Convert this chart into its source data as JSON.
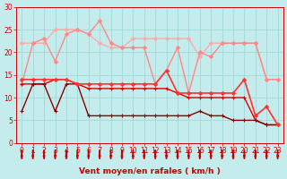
{
  "title": "",
  "xlabel": "Vent moyen/en rafales ( km/h )",
  "bg_color": "#c5ecec",
  "grid_color": "#a0d8d8",
  "xlim": [
    -0.5,
    23.5
  ],
  "ylim": [
    0,
    30
  ],
  "yticks": [
    0,
    5,
    10,
    15,
    20,
    25,
    30
  ],
  "xticks": [
    0,
    1,
    2,
    3,
    4,
    5,
    6,
    7,
    8,
    9,
    10,
    11,
    12,
    13,
    14,
    15,
    16,
    17,
    18,
    19,
    20,
    21,
    22,
    23
  ],
  "lines": [
    {
      "x": [
        0,
        1,
        2,
        3,
        4,
        5,
        6,
        7,
        8,
        9,
        10,
        11,
        12,
        13,
        14,
        15,
        16,
        17,
        18,
        19,
        20,
        21,
        22,
        23
      ],
      "y": [
        22,
        22,
        22,
        25,
        25,
        25,
        24,
        22,
        21,
        21,
        23,
        23,
        23,
        23,
        23,
        23,
        19,
        22,
        22,
        22,
        22,
        22,
        14,
        14
      ],
      "color": "#ffaaaa",
      "lw": 1.0,
      "marker": "D",
      "ms": 2.0
    },
    {
      "x": [
        0,
        1,
        2,
        3,
        4,
        5,
        6,
        7,
        8,
        9,
        10,
        11,
        12,
        13,
        14,
        15,
        16,
        17,
        18,
        19,
        20,
        21,
        22,
        23
      ],
      "y": [
        13,
        22,
        23,
        18,
        24,
        25,
        24,
        27,
        22,
        21,
        21,
        21,
        13,
        16,
        21,
        11,
        20,
        19,
        22,
        22,
        22,
        22,
        14,
        14
      ],
      "color": "#ff8888",
      "lw": 1.0,
      "marker": "D",
      "ms": 2.0
    },
    {
      "x": [
        0,
        1,
        2,
        3,
        4,
        5,
        6,
        7,
        8,
        9,
        10,
        11,
        12,
        13,
        14,
        15,
        16,
        17,
        18,
        19,
        20,
        21,
        22,
        23
      ],
      "y": [
        13,
        13,
        13,
        14,
        14,
        13,
        12,
        12,
        12,
        12,
        12,
        12,
        12,
        12,
        11,
        10,
        10,
        10,
        10,
        10,
        10,
        5,
        4,
        4
      ],
      "color": "#dd0000",
      "lw": 1.0,
      "marker": "+",
      "ms": 3.0
    },
    {
      "x": [
        0,
        1,
        2,
        3,
        4,
        5,
        6,
        7,
        8,
        9,
        10,
        11,
        12,
        13,
        14,
        15,
        16,
        17,
        18,
        19,
        20,
        21,
        22,
        23
      ],
      "y": [
        7,
        13,
        13,
        7,
        13,
        13,
        6,
        6,
        6,
        6,
        6,
        6,
        6,
        6,
        6,
        6,
        7,
        6,
        6,
        5,
        5,
        5,
        4,
        4
      ],
      "color": "#880000",
      "lw": 1.0,
      "marker": "+",
      "ms": 3.0
    },
    {
      "x": [
        0,
        1,
        2,
        3,
        4,
        5,
        6,
        7,
        8,
        9,
        10,
        11,
        12,
        13,
        14,
        15,
        16,
        17,
        18,
        19,
        20,
        21,
        22,
        23
      ],
      "y": [
        14,
        14,
        14,
        14,
        14,
        13,
        13,
        13,
        13,
        13,
        13,
        13,
        13,
        16,
        11,
        11,
        11,
        11,
        11,
        11,
        14,
        6,
        8,
        4
      ],
      "color": "#ff3333",
      "lw": 1.2,
      "marker": "D",
      "ms": 2.0
    }
  ],
  "arrow_color": "#cc0000",
  "xlabel_color": "#cc0000",
  "tick_color": "#cc0000",
  "label_fontsize": 6.5,
  "tick_fontsize": 5.5
}
